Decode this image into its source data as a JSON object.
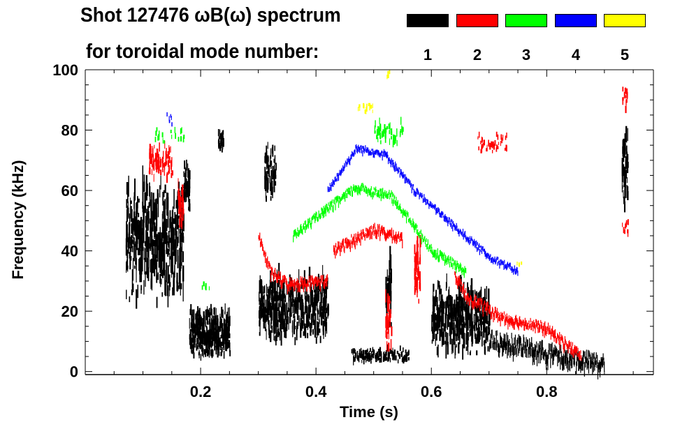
{
  "chart_data": {
    "type": "heatmap",
    "title": "Shot 127476 ωB(ω) spectrum",
    "subtitle": "for toroidal mode number:",
    "xlabel": "Time (s)",
    "ylabel": "Frequency (kHz)",
    "xlim": [
      0,
      0.985
    ],
    "ylim": [
      -1,
      100
    ],
    "xticks": [
      "0.2",
      "0.4",
      "0.6",
      "0.8"
    ],
    "xtick_values": [
      0.2,
      0.4,
      0.6,
      0.8
    ],
    "yticks": [
      "0",
      "20",
      "40",
      "60",
      "80",
      "100"
    ],
    "ytick_values": [
      0,
      20,
      40,
      60,
      80,
      100
    ],
    "legend": [
      {
        "mode": "1",
        "color": "#000000"
      },
      {
        "mode": "2",
        "color": "#ff0000"
      },
      {
        "mode": "3",
        "color": "#00ff00"
      },
      {
        "mode": "4",
        "color": "#0000ff"
      },
      {
        "mode": "5",
        "color": "#ffff00"
      }
    ],
    "modes": [
      {
        "mode": "1",
        "color": "#000000",
        "patches": [
          [
            0.07,
            0.17,
            20,
            63,
            420
          ],
          [
            0.17,
            0.18,
            52,
            68,
            60
          ],
          [
            0.18,
            0.25,
            3,
            20,
            360
          ],
          [
            0.23,
            0.24,
            72,
            80,
            40
          ],
          [
            0.3,
            0.42,
            8,
            32,
            520
          ],
          [
            0.31,
            0.33,
            55,
            75,
            60
          ],
          [
            0.46,
            0.56,
            2,
            7,
            160
          ],
          [
            0.6,
            0.7,
            3,
            30,
            420
          ],
          [
            0.93,
            0.94,
            52,
            80,
            50
          ],
          [
            0.52,
            0.53,
            5,
            40,
            40
          ]
        ],
        "tracks": [
          [
            [
              0.7,
              10
            ],
            [
              0.76,
              8
            ],
            [
              0.82,
              5
            ],
            [
              0.9,
              2
            ]
          ]
        ],
        "track_width": 5
      },
      {
        "mode": "2",
        "color": "#ff0000",
        "patches": [
          [
            0.11,
            0.15,
            62,
            75,
            90
          ],
          [
            0.16,
            0.17,
            47,
            62,
            40
          ],
          [
            0.57,
            0.58,
            20,
            45,
            50
          ],
          [
            0.52,
            0.53,
            5,
            25,
            30
          ],
          [
            0.68,
            0.73,
            72,
            78,
            40
          ],
          [
            0.93,
            0.94,
            85,
            95,
            15
          ],
          [
            0.93,
            0.94,
            44,
            50,
            12
          ]
        ],
        "tracks": [
          [
            [
              0.3,
              45
            ],
            [
              0.32,
              33
            ],
            [
              0.35,
              29
            ],
            [
              0.42,
              30
            ]
          ],
          [
            [
              0.43,
              40
            ],
            [
              0.5,
              47
            ],
            [
              0.55,
              44
            ]
          ],
          [
            [
              0.64,
              32
            ],
            [
              0.66,
              25
            ],
            [
              0.72,
              18
            ],
            [
              0.8,
              14
            ],
            [
              0.86,
              5
            ]
          ]
        ],
        "track_width": 3
      },
      {
        "mode": "3",
        "color": "#00ff00",
        "patches": [
          [
            0.12,
            0.17,
            74,
            81,
            20
          ],
          [
            0.5,
            0.55,
            74,
            84,
            50
          ],
          [
            0.2,
            0.22,
            25,
            30,
            6
          ]
        ],
        "tracks": [
          [
            [
              0.36,
              45
            ],
            [
              0.42,
              54
            ],
            [
              0.47,
              61
            ],
            [
              0.53,
              58
            ],
            [
              0.57,
              48
            ],
            [
              0.6,
              40
            ],
            [
              0.66,
              33
            ]
          ]
        ],
        "track_width": 2.5
      },
      {
        "mode": "4",
        "color": "#0000ff",
        "patches": [
          [
            0.14,
            0.15,
            80,
            85,
            6
          ]
        ],
        "tracks": [
          [
            [
              0.42,
              60
            ],
            [
              0.47,
              74
            ],
            [
              0.52,
              72
            ],
            [
              0.57,
              60
            ],
            [
              0.64,
              48
            ],
            [
              0.7,
              38
            ],
            [
              0.75,
              33
            ]
          ]
        ],
        "track_width": 2
      },
      {
        "mode": "5",
        "color": "#ffff00",
        "patches": [
          [
            0.47,
            0.5,
            85,
            89,
            15
          ],
          [
            0.52,
            0.53,
            96,
            99,
            4
          ],
          [
            0.74,
            0.76,
            34,
            36,
            4
          ]
        ],
        "tracks": [],
        "track_width": 1
      }
    ]
  }
}
